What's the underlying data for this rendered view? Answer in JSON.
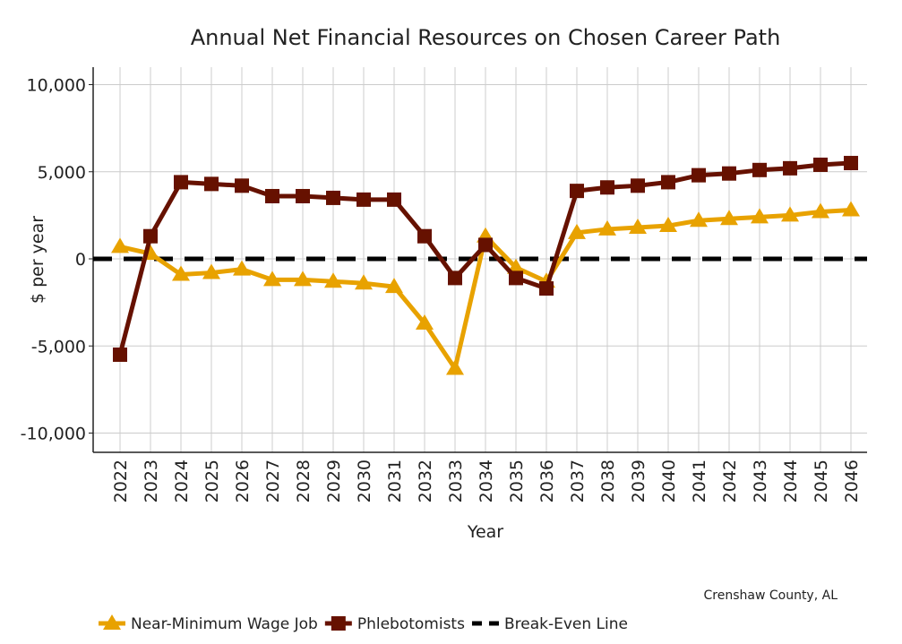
{
  "chart_data": {
    "type": "line",
    "title": "Annual Net Financial Resources on Chosen Career Path",
    "xlabel": "Year",
    "ylabel": "$ per year",
    "ylim": [
      -11000,
      11000
    ],
    "yticks": [
      10000,
      5000,
      0,
      -5000,
      -10000
    ],
    "ytick_labels": [
      "10,000",
      "5,000",
      "0",
      "-5,000",
      "-10,000"
    ],
    "grid": true,
    "x": [
      "2022",
      "2023",
      "2024",
      "2025",
      "2026",
      "2027",
      "2028",
      "2029",
      "2030",
      "2031",
      "2032",
      "2033",
      "2034",
      "2035",
      "2036",
      "2037",
      "2038",
      "2039",
      "2040",
      "2041",
      "2042",
      "2043",
      "2044",
      "2045",
      "2046"
    ],
    "series": [
      {
        "name": "Near-Minimum Wage Job",
        "color": "#E8A200",
        "marker": "triangle",
        "values": [
          700,
          300,
          -900,
          -800,
          -600,
          -1200,
          -1200,
          -1300,
          -1400,
          -1600,
          -3700,
          -6300,
          1300,
          -500,
          -1300,
          1500,
          1700,
          1800,
          1900,
          2200,
          2300,
          2400,
          2500,
          2700,
          2800
        ]
      },
      {
        "name": "Phlebotomists",
        "color": "#661100",
        "marker": "square",
        "values": [
          -5500,
          1300,
          4400,
          4300,
          4200,
          3600,
          3600,
          3500,
          3400,
          3400,
          1300,
          -1100,
          800,
          -1100,
          -1700,
          3900,
          4100,
          4200,
          4400,
          4800,
          4900,
          5100,
          5200,
          5400,
          5500
        ]
      }
    ],
    "reference_line": {
      "name": "Break-Even Line",
      "value": 0,
      "color": "#000000"
    },
    "legend_placement": "bottom-left",
    "annotation": "Crenshaw County, AL"
  }
}
